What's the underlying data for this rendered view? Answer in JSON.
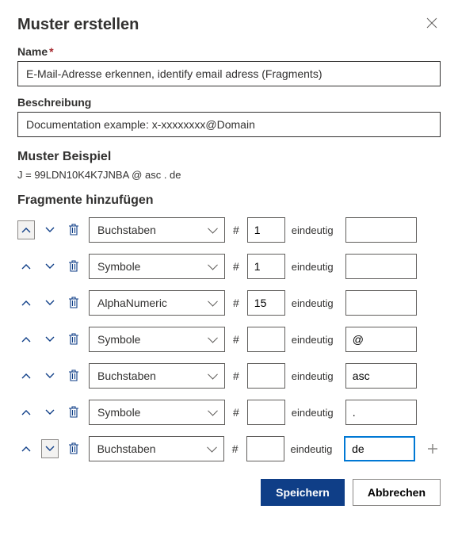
{
  "dialog": {
    "title": "Muster erstellen",
    "name_label": "Name",
    "name_value": "E-Mail-Adresse erkennen, identify email adress (Fragments)",
    "desc_label": "Beschreibung",
    "desc_value": "Documentation example: x-xxxxxxxx@Domain",
    "example_title": "Muster Beispiel",
    "example_text": "J = 99LDN10K4K7JNBA @ asc . de",
    "fragments_title": "Fragmente hinzufügen",
    "hash_label": "#",
    "eindeutig_label": "eindeutig",
    "save_label": "Speichern",
    "cancel_label": "Abbrechen"
  },
  "colors": {
    "accent": "#0f3e87",
    "border": "#605e5c",
    "text": "#323130",
    "required": "#a4262c",
    "focus": "#0078d4"
  },
  "fragments": [
    {
      "type": "Buchstaben",
      "count": "1",
      "value": "",
      "up_active": true,
      "down_active": false,
      "show_plus": false,
      "focused": false
    },
    {
      "type": "Symbole",
      "count": "1",
      "value": "",
      "up_active": false,
      "down_active": false,
      "show_plus": false,
      "focused": false
    },
    {
      "type": "AlphaNumeric",
      "count": "15",
      "value": "",
      "up_active": false,
      "down_active": false,
      "show_plus": false,
      "focused": false
    },
    {
      "type": "Symbole",
      "count": "",
      "value": "@",
      "up_active": false,
      "down_active": false,
      "show_plus": false,
      "focused": false
    },
    {
      "type": "Buchstaben",
      "count": "",
      "value": "asc",
      "up_active": false,
      "down_active": false,
      "show_plus": false,
      "focused": false
    },
    {
      "type": "Symbole",
      "count": "",
      "value": ".",
      "up_active": false,
      "down_active": false,
      "show_plus": false,
      "focused": false
    },
    {
      "type": "Buchstaben",
      "count": "",
      "value": "de",
      "up_active": false,
      "down_active": true,
      "show_plus": true,
      "focused": true
    }
  ]
}
